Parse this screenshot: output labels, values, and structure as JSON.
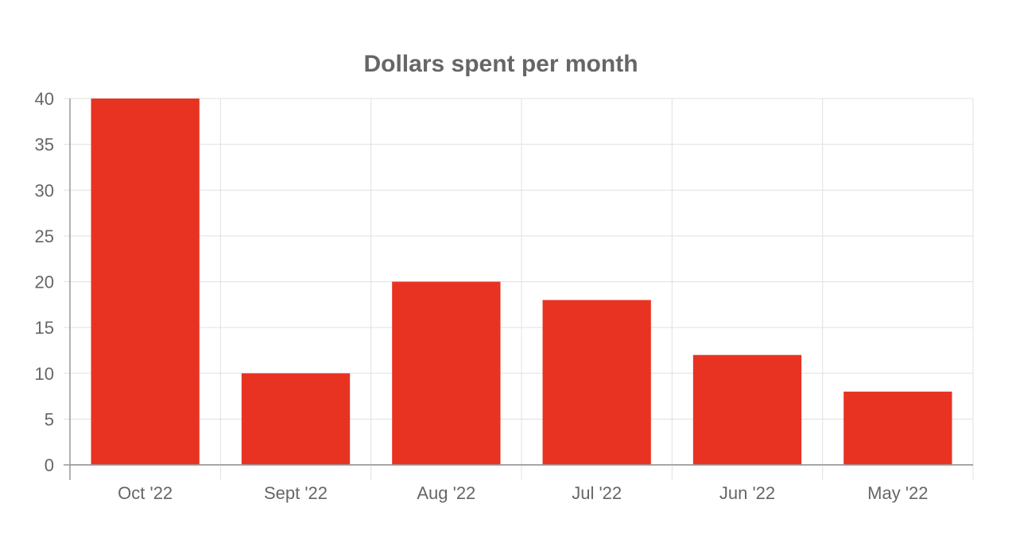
{
  "chart_data": {
    "type": "bar",
    "title": "Dollars spent per month",
    "categories": [
      "Oct '22",
      "Sept '22",
      "Aug '22",
      "Jul '22",
      "Jun '22",
      "May '22"
    ],
    "values": [
      40,
      10,
      20,
      18,
      12,
      8
    ],
    "ylim": [
      0,
      40
    ],
    "yticks": [
      "0",
      "5",
      "10",
      "15",
      "20",
      "25",
      "30",
      "35",
      "40"
    ],
    "xlabel": "",
    "ylabel": "",
    "grid": true,
    "legend": "none",
    "colors": {
      "bar": "#e83323",
      "grid": "#e0e0e0",
      "axis": "#999999",
      "text": "#666666"
    }
  }
}
